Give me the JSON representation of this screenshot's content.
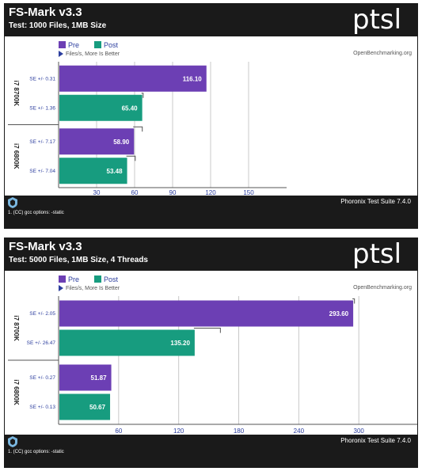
{
  "colors": {
    "pre": "#6c3fb4",
    "post": "#179c7f",
    "header": "#1a1a1a",
    "accent": "#2c3e9e"
  },
  "logo_text": "ptsl",
  "charts": [
    {
      "title": "FS-Mark v3.3",
      "subtitle": "Test: 1000 Files, 1MB Size",
      "legend": [
        "Pre",
        "Post"
      ],
      "direction_hint": "Files/s, More Is Better",
      "source": "OpenBenchmarking.org",
      "suite": "Phoronix Test Suite 7.4.0",
      "footnote": "1. (CC) gcc options: -static",
      "icon": "pts-shield-icon"
    },
    {
      "title": "FS-Mark v3.3",
      "subtitle": "Test: 5000 Files, 1MB Size, 4 Threads",
      "legend": [
        "Pre",
        "Post"
      ],
      "direction_hint": "Files/s, More Is Better",
      "source": "OpenBenchmarking.org",
      "suite": "Phoronix Test Suite 7.4.0",
      "footnote": "1. (CC) gcc options: -static",
      "icon": "pts-shield-icon"
    }
  ],
  "chart_data": [
    {
      "type": "bar",
      "orientation": "horizontal",
      "title": "FS-Mark v3.3",
      "subtitle": "Test: 1000 Files, 1MB Size",
      "xlabel": "Files/s, More Is Better",
      "xlim": [
        0,
        180
      ],
      "xticks": [
        30,
        60,
        90,
        120,
        150
      ],
      "categories": [
        "i7 8700K",
        "i7 6800K"
      ],
      "series": [
        {
          "name": "Pre",
          "values": [
            116.1,
            58.9
          ],
          "se_labels": [
            "SE +/- 0.31",
            "SE +/- 7.17"
          ],
          "errors": [
            0.31,
            7.17
          ]
        },
        {
          "name": "Post",
          "values": [
            65.4,
            53.48
          ],
          "se_labels": [
            "SE +/- 1.36",
            "SE +/- 7.04"
          ],
          "errors": [
            1.36,
            7.04
          ]
        }
      ]
    },
    {
      "type": "bar",
      "orientation": "horizontal",
      "title": "FS-Mark v3.3",
      "subtitle": "Test: 5000 Files, 1MB Size, 4 Threads",
      "xlabel": "Files/s, More Is Better",
      "xlim": [
        0,
        360
      ],
      "xticks": [
        60,
        120,
        180,
        240,
        300
      ],
      "categories": [
        "i7 8700K",
        "i7 6800K"
      ],
      "series": [
        {
          "name": "Pre",
          "values": [
            293.6,
            51.87
          ],
          "se_labels": [
            "SE +/- 2.05",
            "SE +/- 0.27"
          ],
          "errors": [
            2.05,
            0.27
          ]
        },
        {
          "name": "Post",
          "values": [
            135.2,
            50.67
          ],
          "se_labels": [
            "SE +/- 26.47",
            "SE +/- 0.13"
          ],
          "errors": [
            26.47,
            0.13
          ]
        }
      ]
    }
  ]
}
